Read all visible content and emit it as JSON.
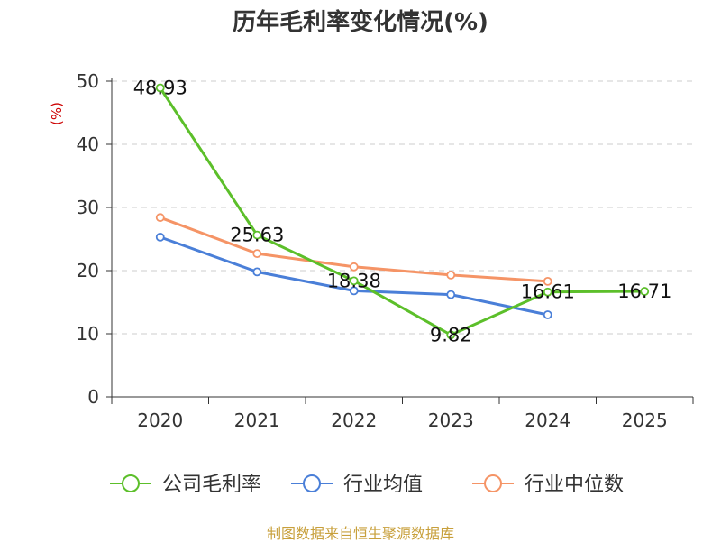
{
  "chart_data": {
    "type": "line",
    "title": "历年毛利率变化情况(%)",
    "ylabel": "(%)",
    "xlabel": "",
    "categories": [
      "2020",
      "2021",
      "2022",
      "2023",
      "2024",
      "2025"
    ],
    "ylim": [
      0,
      50
    ],
    "yticks": [
      0,
      10,
      20,
      30,
      40,
      50
    ],
    "grid": true,
    "legend_position": "bottom",
    "series": [
      {
        "name": "公司毛利率",
        "color": "#5cbf2a",
        "values": [
          48.93,
          25.63,
          18.38,
          9.82,
          16.61,
          16.71
        ],
        "labels": [
          "48.93",
          "25.63",
          "18.38",
          "9.82",
          "16.61",
          "16.71"
        ]
      },
      {
        "name": "行业均值",
        "color": "#4a7fd8",
        "values": [
          25.3,
          19.8,
          16.8,
          16.2,
          13.0,
          null
        ],
        "labels": []
      },
      {
        "name": "行业中位数",
        "color": "#f59466",
        "values": [
          28.4,
          22.7,
          20.6,
          19.3,
          18.3,
          null
        ],
        "labels": []
      }
    ]
  },
  "footer": {
    "source": "制图数据来自恒生聚源数据库"
  }
}
